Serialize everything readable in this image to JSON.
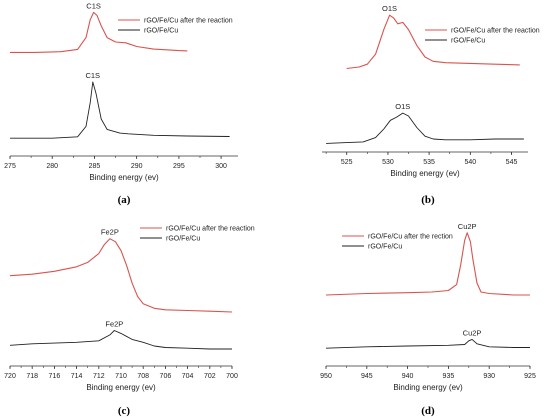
{
  "chart_data": [
    {
      "type": "line",
      "panel_label": "(a)",
      "xlabel": "Binding energy (ev)",
      "xlim": [
        275,
        302
      ],
      "x_reversed": false,
      "x_ticks": [
        275,
        280,
        285,
        290,
        295,
        300
      ],
      "legend": [
        "rGO/Fe/Cu after the reaction",
        "rGO/Fe/Cu"
      ],
      "series": [
        {
          "name": "rGO/Fe/Cu after the reaction",
          "color": "#d9534f",
          "peak_label": "C1S",
          "points": [
            [
              275,
              0.7
            ],
            [
              278,
              0.7
            ],
            [
              281,
              0.705
            ],
            [
              283,
              0.72
            ],
            [
              284,
              0.8
            ],
            [
              284.5,
              0.92
            ],
            [
              284.9,
              0.97
            ],
            [
              285.3,
              0.95
            ],
            [
              285.8,
              0.88
            ],
            [
              286.5,
              0.8
            ],
            [
              287.5,
              0.77
            ],
            [
              288.7,
              0.765
            ],
            [
              290,
              0.74
            ],
            [
              292,
              0.722
            ],
            [
              295,
              0.712
            ],
            [
              296,
              0.71
            ]
          ]
        },
        {
          "name": "rGO/Fe/Cu",
          "color": "#222222",
          "peak_label": "C1S",
          "points": [
            [
              275,
              0.12
            ],
            [
              280,
              0.12
            ],
            [
              283,
              0.13
            ],
            [
              284,
              0.2
            ],
            [
              284.5,
              0.36
            ],
            [
              284.8,
              0.5
            ],
            [
              285.2,
              0.42
            ],
            [
              285.8,
              0.25
            ],
            [
              286.5,
              0.18
            ],
            [
              288,
              0.155
            ],
            [
              289,
              0.15
            ],
            [
              292,
              0.14
            ],
            [
              296,
              0.135
            ],
            [
              301,
              0.132
            ]
          ]
        }
      ]
    },
    {
      "type": "line",
      "panel_label": "(b)",
      "xlabel": "Binding energy (ev)",
      "xlim": [
        522,
        547
      ],
      "x_reversed": false,
      "x_ticks": [
        525,
        530,
        535,
        540,
        545
      ],
      "legend": [
        "rGO/Fe/Cu after the reaction",
        "rGO/Fe/Cu"
      ],
      "series": [
        {
          "name": "rGO/Fe/Cu after the reaction",
          "color": "#d9534f",
          "peak_label": "O1S",
          "points": [
            [
              525,
              0.58
            ],
            [
              526.5,
              0.59
            ],
            [
              527.5,
              0.61
            ],
            [
              528.5,
              0.68
            ],
            [
              529.5,
              0.85
            ],
            [
              530.2,
              0.95
            ],
            [
              530.7,
              0.93
            ],
            [
              531.2,
              0.89
            ],
            [
              531.8,
              0.9
            ],
            [
              532.5,
              0.85
            ],
            [
              533.5,
              0.74
            ],
            [
              534.5,
              0.66
            ],
            [
              535.5,
              0.63
            ],
            [
              537,
              0.62
            ],
            [
              540,
              0.615
            ],
            [
              543,
              0.61
            ],
            [
              546,
              0.605
            ]
          ]
        },
        {
          "name": "rGO/Fe/Cu",
          "color": "#222222",
          "peak_label": "O1S",
          "points": [
            [
              522.5,
              0.06
            ],
            [
              525,
              0.065
            ],
            [
              527,
              0.07
            ],
            [
              528.5,
              0.1
            ],
            [
              529.5,
              0.16
            ],
            [
              530.3,
              0.22
            ],
            [
              531,
              0.24
            ],
            [
              531.8,
              0.27
            ],
            [
              532.5,
              0.25
            ],
            [
              533.5,
              0.17
            ],
            [
              534.5,
              0.11
            ],
            [
              535.5,
              0.09
            ],
            [
              537,
              0.085
            ],
            [
              540,
              0.085
            ],
            [
              543,
              0.09
            ],
            [
              546.5,
              0.09
            ]
          ]
        }
      ]
    },
    {
      "type": "line",
      "panel_label": "(c)",
      "xlabel": "Binding energy (ev)",
      "xlim": [
        720,
        700
      ],
      "x_reversed": true,
      "x_ticks": [
        720,
        718,
        716,
        714,
        712,
        710,
        708,
        706,
        704,
        702,
        700
      ],
      "legend": [
        "rGO/Fe/Cu after the reaction",
        "rGO/Fe/Cu"
      ],
      "series": [
        {
          "name": "rGO/Fe/Cu after the reaction",
          "color": "#d9534f",
          "peak_label": "Fe2P",
          "points": [
            [
              720,
              0.61
            ],
            [
              718,
              0.62
            ],
            [
              716,
              0.64
            ],
            [
              714,
              0.67
            ],
            [
              713,
              0.7
            ],
            [
              712,
              0.76
            ],
            [
              711.5,
              0.82
            ],
            [
              711,
              0.86
            ],
            [
              710.5,
              0.84
            ],
            [
              710,
              0.78
            ],
            [
              709.5,
              0.68
            ],
            [
              709,
              0.56
            ],
            [
              708.5,
              0.47
            ],
            [
              708,
              0.42
            ],
            [
              707,
              0.39
            ],
            [
              706,
              0.38
            ],
            [
              704,
              0.375
            ],
            [
              702,
              0.37
            ],
            [
              700,
              0.365
            ]
          ]
        },
        {
          "name": "rGO/Fe/Cu",
          "color": "#222222",
          "peak_label": "Fe2P",
          "points": [
            [
              720,
              0.14
            ],
            [
              718,
              0.15
            ],
            [
              716,
              0.155
            ],
            [
              714,
              0.16
            ],
            [
              712,
              0.17
            ],
            [
              711,
              0.21
            ],
            [
              710.6,
              0.24
            ],
            [
              710,
              0.22
            ],
            [
              709,
              0.18
            ],
            [
              708,
              0.16
            ],
            [
              707,
              0.135
            ],
            [
              706,
              0.125
            ],
            [
              704,
              0.12
            ],
            [
              702,
              0.115
            ],
            [
              700,
              0.115
            ]
          ]
        }
      ]
    },
    {
      "type": "line",
      "panel_label": "(d)",
      "xlabel": "Binding energy (ev)",
      "xlim": [
        950,
        925
      ],
      "x_reversed": true,
      "x_ticks": [
        950,
        945,
        940,
        935,
        930,
        925
      ],
      "legend": [
        "rGO/Fe/Cu after the rection",
        "rGO/Fe/Cu"
      ],
      "series": [
        {
          "name": "rGO/Fe/Cu after the rection",
          "color": "#d9534f",
          "peak_label": "Cu2P",
          "points": [
            [
              950,
              0.48
            ],
            [
              945,
              0.49
            ],
            [
              940,
              0.495
            ],
            [
              937,
              0.5
            ],
            [
              935,
              0.51
            ],
            [
              934,
              0.55
            ],
            [
              933.5,
              0.68
            ],
            [
              933,
              0.85
            ],
            [
              932.7,
              0.9
            ],
            [
              932.3,
              0.84
            ],
            [
              932,
              0.72
            ],
            [
              931.5,
              0.56
            ],
            [
              931,
              0.5
            ],
            [
              930,
              0.49
            ],
            [
              927,
              0.48
            ],
            [
              925,
              0.48
            ]
          ]
        },
        {
          "name": "rGO/Fe/Cu",
          "color": "#222222",
          "peak_label": "Cu2P",
          "points": [
            [
              950,
              0.12
            ],
            [
              945,
              0.13
            ],
            [
              940,
              0.135
            ],
            [
              935,
              0.14
            ],
            [
              933,
              0.145
            ],
            [
              932.5,
              0.17
            ],
            [
              932.1,
              0.18
            ],
            [
              931.5,
              0.15
            ],
            [
              930,
              0.13
            ],
            [
              927,
              0.125
            ],
            [
              925,
              0.125
            ]
          ]
        }
      ]
    }
  ]
}
